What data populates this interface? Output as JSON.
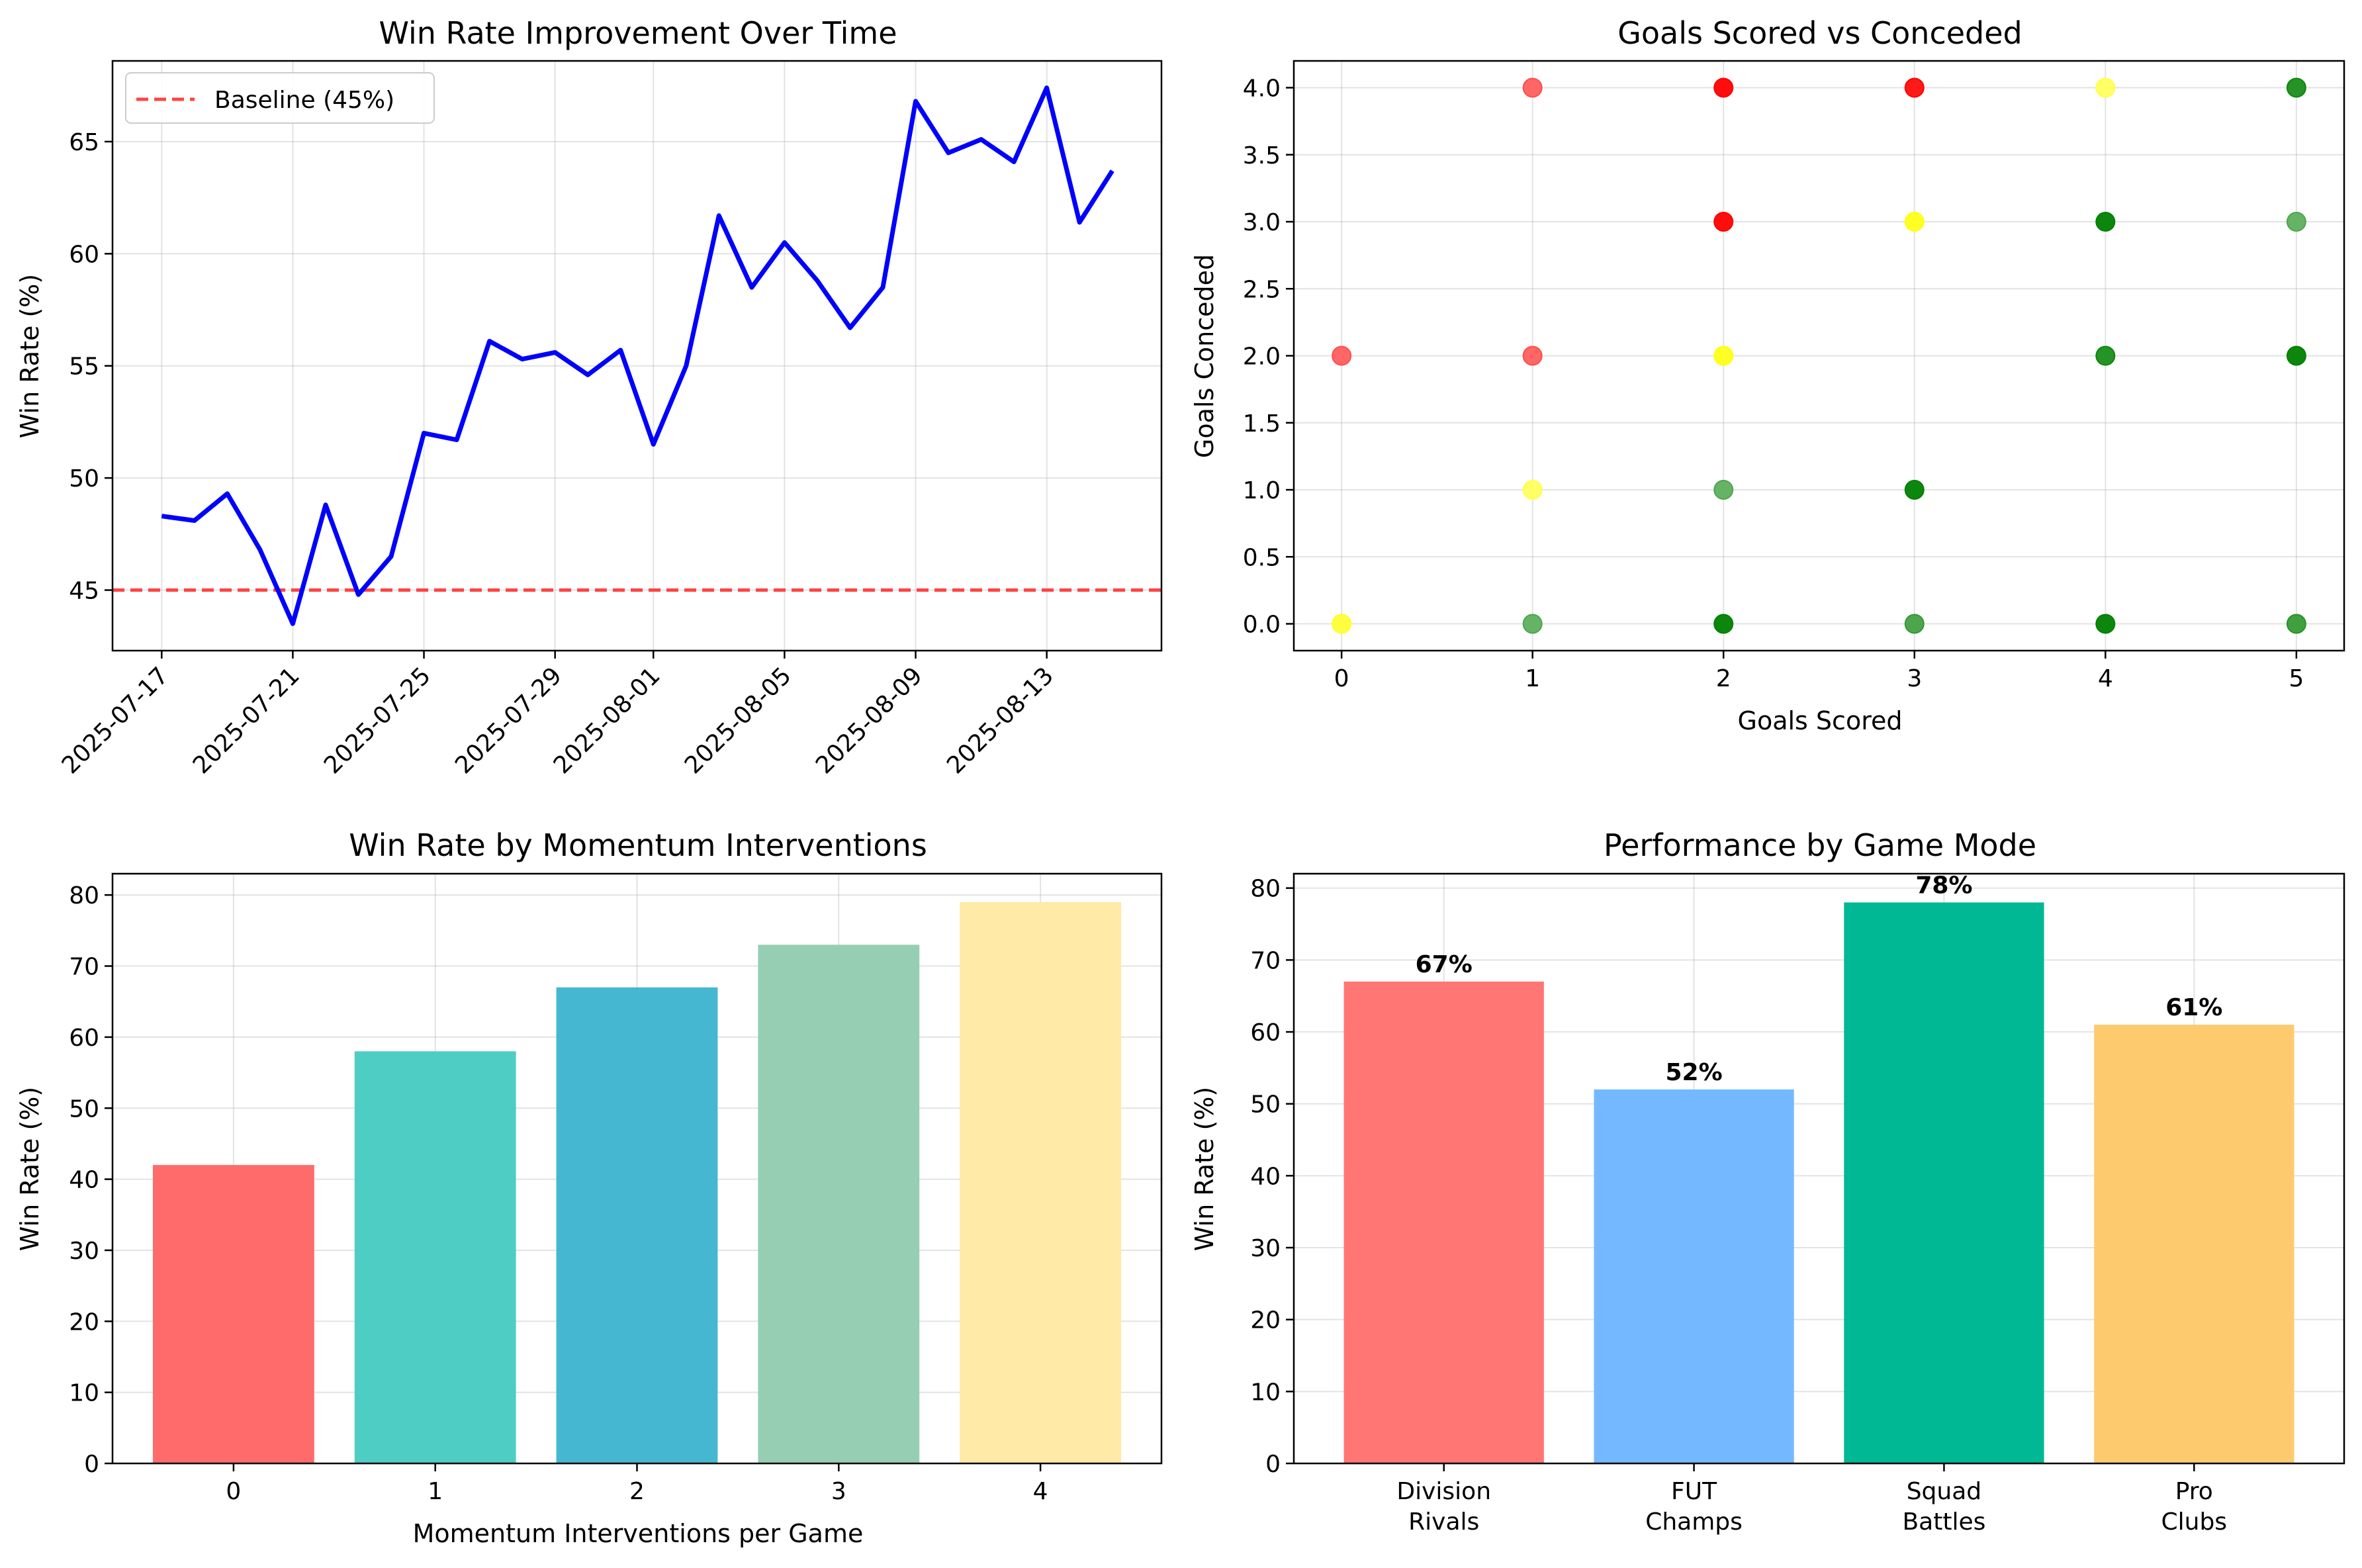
{
  "chart_data": [
    {
      "id": "winrate_time",
      "type": "line",
      "title": "Win Rate Improvement Over Time",
      "xlabel": "",
      "ylabel": "Win Rate (%)",
      "x_tick_labels": [
        "2025-07-17",
        "2025-07-21",
        "2025-07-25",
        "2025-07-29",
        "2025-08-01",
        "2025-08-05",
        "2025-08-09",
        "2025-08-13"
      ],
      "y_ticks": [
        45,
        50,
        55,
        60,
        65
      ],
      "ylim": [
        42.3,
        68.6
      ],
      "grid": true,
      "legend": "top-left",
      "series": [
        {
          "name": "",
          "color": "#0000ff",
          "x": [
            "2025-07-17",
            "2025-07-18",
            "2025-07-19",
            "2025-07-20",
            "2025-07-21",
            "2025-07-22",
            "2025-07-23",
            "2025-07-24",
            "2025-07-25",
            "2025-07-26",
            "2025-07-27",
            "2025-07-28",
            "2025-07-29",
            "2025-07-30",
            "2025-07-31",
            "2025-08-01",
            "2025-08-02",
            "2025-08-03",
            "2025-08-04",
            "2025-08-05",
            "2025-08-06",
            "2025-08-07",
            "2025-08-08",
            "2025-08-09",
            "2025-08-10",
            "2025-08-11",
            "2025-08-12",
            "2025-08-13",
            "2025-08-14",
            "2025-08-15"
          ],
          "values": [
            48.3,
            48.1,
            49.3,
            46.8,
            43.5,
            48.8,
            44.8,
            46.5,
            52.0,
            51.7,
            56.1,
            55.3,
            55.6,
            54.6,
            55.7,
            51.5,
            55.0,
            61.7,
            58.5,
            60.5,
            58.8,
            56.7,
            58.5,
            66.8,
            64.5,
            65.1,
            64.1,
            67.4,
            61.4,
            63.7
          ]
        }
      ],
      "reference_line": {
        "name": "Baseline (45%)",
        "value": 45,
        "color": "#ff4444",
        "style": "dashed"
      }
    },
    {
      "id": "goals_scatter",
      "type": "scatter",
      "title": "Goals Scored vs Conceded",
      "xlabel": "Goals Scored",
      "ylabel": "Goals Conceded",
      "x_ticks": [
        0,
        1,
        2,
        3,
        4,
        5
      ],
      "y_ticks": [
        0.0,
        0.5,
        1.0,
        1.5,
        2.0,
        2.5,
        3.0,
        3.5,
        4.0
      ],
      "xlim": [
        -0.25,
        5.25
      ],
      "ylim": [
        -0.2,
        4.2
      ],
      "grid": true,
      "colors": {
        "win": "#008000",
        "draw": "#ffff00",
        "loss": "#ff0000"
      },
      "points": [
        {
          "x": 0,
          "y": 2,
          "result": "loss",
          "strength": 0.6
        },
        {
          "x": 0,
          "y": 0,
          "result": "draw",
          "strength": 0.75
        },
        {
          "x": 1,
          "y": 4,
          "result": "loss",
          "strength": 0.6
        },
        {
          "x": 1,
          "y": 2,
          "result": "loss",
          "strength": 0.6
        },
        {
          "x": 1,
          "y": 1,
          "result": "draw",
          "strength": 0.6
        },
        {
          "x": 1,
          "y": 0,
          "result": "win",
          "strength": 0.6
        },
        {
          "x": 2,
          "y": 4,
          "result": "loss",
          "strength": 0.95
        },
        {
          "x": 2,
          "y": 3,
          "result": "loss",
          "strength": 0.95
        },
        {
          "x": 2,
          "y": 2,
          "result": "draw",
          "strength": 0.85
        },
        {
          "x": 2,
          "y": 1,
          "result": "win",
          "strength": 0.6
        },
        {
          "x": 2,
          "y": 0,
          "result": "win",
          "strength": 0.95
        },
        {
          "x": 3,
          "y": 4,
          "result": "loss",
          "strength": 0.9
        },
        {
          "x": 3,
          "y": 3,
          "result": "draw",
          "strength": 0.85
        },
        {
          "x": 3,
          "y": 1,
          "result": "win",
          "strength": 0.95
        },
        {
          "x": 3,
          "y": 0,
          "result": "win",
          "strength": 0.7
        },
        {
          "x": 4,
          "y": 4,
          "result": "draw",
          "strength": 0.6
        },
        {
          "x": 4,
          "y": 3,
          "result": "win",
          "strength": 0.95
        },
        {
          "x": 4,
          "y": 2,
          "result": "win",
          "strength": 0.85
        },
        {
          "x": 4,
          "y": 0,
          "result": "win",
          "strength": 0.95
        },
        {
          "x": 5,
          "y": 4,
          "result": "win",
          "strength": 0.85
        },
        {
          "x": 5,
          "y": 3,
          "result": "win",
          "strength": 0.6
        },
        {
          "x": 5,
          "y": 2,
          "result": "win",
          "strength": 0.95
        },
        {
          "x": 5,
          "y": 0,
          "result": "win",
          "strength": 0.75
        }
      ]
    },
    {
      "id": "momentum_bars",
      "type": "bar",
      "title": "Win Rate by Momentum Interventions",
      "xlabel": "Momentum Interventions per Game",
      "ylabel": "Win Rate (%)",
      "categories": [
        "0",
        "1",
        "2",
        "3",
        "4"
      ],
      "values": [
        42,
        58,
        67,
        73,
        79
      ],
      "colors": [
        "#ff6b6b",
        "#4ecdc4",
        "#45b7d1",
        "#96ceb4",
        "#ffeaa7"
      ],
      "y_ticks": [
        0,
        10,
        20,
        30,
        40,
        50,
        60,
        70,
        80
      ],
      "ylim": [
        0,
        83
      ],
      "grid": true
    },
    {
      "id": "mode_bars",
      "type": "bar",
      "title": "Performance by Game Mode",
      "xlabel": "",
      "ylabel": "Win Rate (%)",
      "categories": [
        [
          "Division",
          "Rivals"
        ],
        [
          "FUT",
          "Champs"
        ],
        [
          "Squad",
          "Battles"
        ],
        [
          "Pro",
          "Clubs"
        ]
      ],
      "values": [
        67,
        52,
        78,
        61
      ],
      "value_labels": [
        "67%",
        "52%",
        "78%",
        "61%"
      ],
      "colors": [
        "#ff7675",
        "#74b9ff",
        "#00b894",
        "#fdcb6e"
      ],
      "y_ticks": [
        0,
        10,
        20,
        30,
        40,
        50,
        60,
        70,
        80
      ],
      "ylim": [
        0,
        82
      ],
      "grid": true
    }
  ]
}
